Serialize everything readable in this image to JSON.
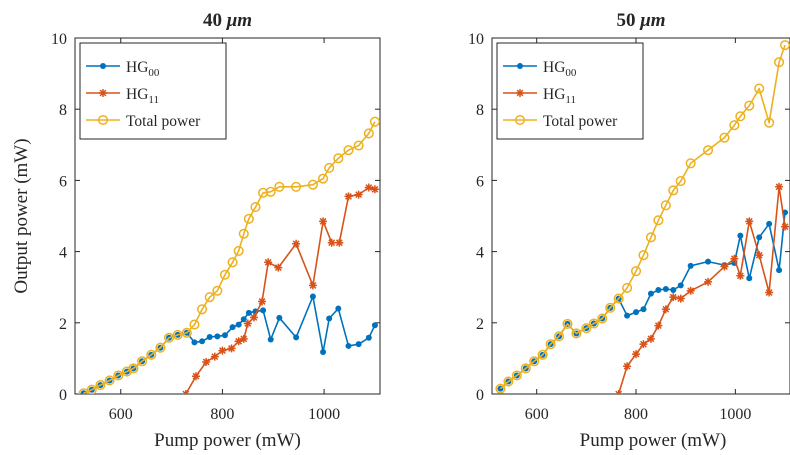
{
  "figure": {
    "ylabel": "Output power (mW)"
  },
  "chart_data": [
    {
      "type": "line",
      "title": "40 μm",
      "title_main": "40 ",
      "title_unit": "μm",
      "xlabel": "Pump power (mW)",
      "ylabel": "Output power (mW)",
      "xlim": [
        510,
        1110
      ],
      "ylim": [
        0,
        10
      ],
      "xticks": [
        600,
        800,
        1000
      ],
      "yticks": [
        0,
        2,
        4,
        6,
        8,
        10
      ],
      "grid": false,
      "legend_position": "top-left",
      "series": [
        {
          "name": "HG00",
          "name_main": "HG",
          "name_sub": "00",
          "color": "#0072BD",
          "marker": "dot",
          "x": [
            527,
            543,
            560,
            578,
            595,
            612,
            625,
            642,
            660,
            678,
            695,
            712,
            730,
            745,
            760,
            775,
            790,
            805,
            820,
            832,
            842,
            852,
            865,
            880,
            895,
            912,
            945,
            978,
            998,
            1010,
            1028,
            1048,
            1068,
            1088,
            1100
          ],
          "y": [
            0.02,
            0.12,
            0.25,
            0.38,
            0.52,
            0.63,
            0.72,
            0.92,
            1.1,
            1.3,
            1.58,
            1.66,
            1.72,
            1.45,
            1.48,
            1.6,
            1.62,
            1.65,
            1.88,
            1.95,
            2.1,
            2.28,
            2.32,
            2.35,
            1.53,
            2.14,
            1.59,
            2.74,
            1.18,
            2.12,
            2.4,
            1.35,
            1.4,
            1.58,
            1.93
          ]
        },
        {
          "name": "HG11",
          "name_main": "HG",
          "name_sub": "11",
          "color": "#D95319",
          "marker": "star",
          "x": [
            728,
            748,
            768,
            785,
            800,
            818,
            832,
            842,
            850,
            862,
            878,
            890,
            910,
            945,
            978,
            998,
            1015,
            1030,
            1048,
            1068,
            1088,
            1100
          ],
          "y": [
            0.0,
            0.5,
            0.9,
            1.05,
            1.22,
            1.28,
            1.48,
            1.55,
            1.98,
            2.15,
            2.6,
            3.7,
            3.55,
            4.22,
            3.05,
            4.85,
            4.25,
            4.25,
            5.55,
            5.6,
            5.8,
            5.75
          ]
        },
        {
          "name": "Total power",
          "color": "#EDB120",
          "marker": "circle",
          "x": [
            527,
            543,
            560,
            578,
            595,
            612,
            625,
            642,
            660,
            678,
            695,
            712,
            730,
            745,
            760,
            775,
            790,
            805,
            820,
            832,
            842,
            852,
            865,
            880,
            895,
            912,
            945,
            978,
            998,
            1010,
            1028,
            1048,
            1068,
            1088,
            1100
          ],
          "y": [
            0.02,
            0.12,
            0.25,
            0.38,
            0.52,
            0.63,
            0.72,
            0.92,
            1.1,
            1.3,
            1.58,
            1.66,
            1.72,
            1.95,
            2.38,
            2.72,
            2.9,
            3.35,
            3.7,
            4.02,
            4.5,
            4.92,
            5.25,
            5.65,
            5.68,
            5.82,
            5.82,
            5.88,
            6.05,
            6.35,
            6.62,
            6.85,
            6.98,
            7.32,
            7.65
          ]
        }
      ]
    },
    {
      "type": "line",
      "title": "50 μm",
      "title_main": "50 ",
      "title_unit": "μm",
      "xlabel": "Pump power (mW)",
      "ylabel": "",
      "xlim": [
        510,
        1110
      ],
      "ylim": [
        0,
        10
      ],
      "xticks": [
        600,
        800,
        1000
      ],
      "yticks": [
        0,
        2,
        4,
        6,
        8,
        10
      ],
      "grid": false,
      "legend_position": "top-left",
      "series": [
        {
          "name": "HG00",
          "name_main": "HG",
          "name_sub": "00",
          "color": "#0072BD",
          "marker": "dot",
          "x": [
            527,
            543,
            560,
            578,
            595,
            612,
            628,
            645,
            662,
            680,
            700,
            715,
            732,
            748,
            765,
            782,
            800,
            815,
            830,
            845,
            860,
            875,
            890,
            910,
            945,
            978,
            998,
            1010,
            1028,
            1048,
            1068,
            1088,
            1100
          ],
          "y": [
            0.15,
            0.35,
            0.52,
            0.72,
            0.92,
            1.1,
            1.4,
            1.62,
            1.97,
            1.7,
            1.85,
            1.98,
            2.12,
            2.42,
            2.68,
            2.2,
            2.3,
            2.38,
            2.82,
            2.92,
            2.95,
            2.92,
            3.05,
            3.6,
            3.72,
            3.62,
            3.68,
            4.45,
            3.25,
            4.4,
            4.78,
            3.48,
            5.1
          ]
        },
        {
          "name": "HG11",
          "name_main": "HG",
          "name_sub": "11",
          "color": "#D95319",
          "marker": "star",
          "x": [
            765,
            782,
            800,
            815,
            830,
            845,
            860,
            875,
            890,
            910,
            945,
            978,
            998,
            1010,
            1028,
            1048,
            1068,
            1088,
            1100
          ],
          "y": [
            0.0,
            0.78,
            1.12,
            1.4,
            1.55,
            1.92,
            2.38,
            2.72,
            2.68,
            2.9,
            3.15,
            3.58,
            3.8,
            3.32,
            4.85,
            3.9,
            2.85,
            5.82,
            4.7
          ]
        },
        {
          "name": "Total power",
          "color": "#EDB120",
          "marker": "circle",
          "x": [
            527,
            543,
            560,
            578,
            595,
            612,
            628,
            645,
            662,
            680,
            700,
            715,
            732,
            748,
            765,
            782,
            800,
            815,
            830,
            845,
            860,
            875,
            890,
            910,
            945,
            978,
            998,
            1010,
            1028,
            1048,
            1068,
            1088,
            1100
          ],
          "y": [
            0.15,
            0.35,
            0.52,
            0.72,
            0.92,
            1.1,
            1.4,
            1.62,
            1.97,
            1.7,
            1.85,
            1.98,
            2.12,
            2.42,
            2.68,
            2.98,
            3.45,
            3.9,
            4.4,
            4.88,
            5.3,
            5.72,
            5.98,
            6.48,
            6.85,
            7.2,
            7.55,
            7.8,
            8.1,
            8.58,
            7.62,
            9.32,
            9.8
          ]
        }
      ]
    }
  ]
}
